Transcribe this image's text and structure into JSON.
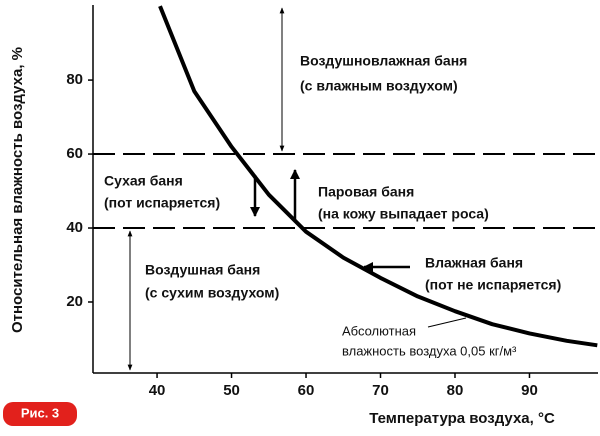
{
  "chart_data": {
    "type": "line",
    "x_label": "Температура воздуха, °C",
    "y_label": "Относительная влажность воздуха, %",
    "x": [
      40.4,
      45,
      50,
      55,
      60,
      65,
      70,
      75,
      80,
      85,
      90,
      95,
      99.1
    ],
    "values": [
      100,
      77,
      62,
      49,
      39,
      32,
      26.5,
      21.5,
      17.5,
      14,
      11.5,
      9.5,
      8.3
    ],
    "color": "#000000",
    "xlim": [
      31.4,
      99.2
    ],
    "ylim": [
      0.8,
      100.3
    ],
    "xticks": [
      40,
      50,
      60,
      70,
      80,
      90
    ],
    "yticks": [
      20,
      40,
      60,
      80
    ],
    "hlines": [
      60,
      40
    ],
    "annotations": [
      [
        "Воздушновлажная баня",
        "(с влажным воздухом)"
      ],
      [
        "Сухая баня",
        "(пот испаряется)"
      ],
      [
        "Паровая баня",
        "(на кожу выпадает роса)"
      ],
      [
        "Воздушная баня",
        "(с сухим воздухом)"
      ],
      [
        "Влажная баня",
        "(пот не испаряется)"
      ],
      [
        "Абсолютная",
        "влажность воздуха 0,05 кг/м³"
      ]
    ],
    "figure_label": "Рис. 3"
  }
}
